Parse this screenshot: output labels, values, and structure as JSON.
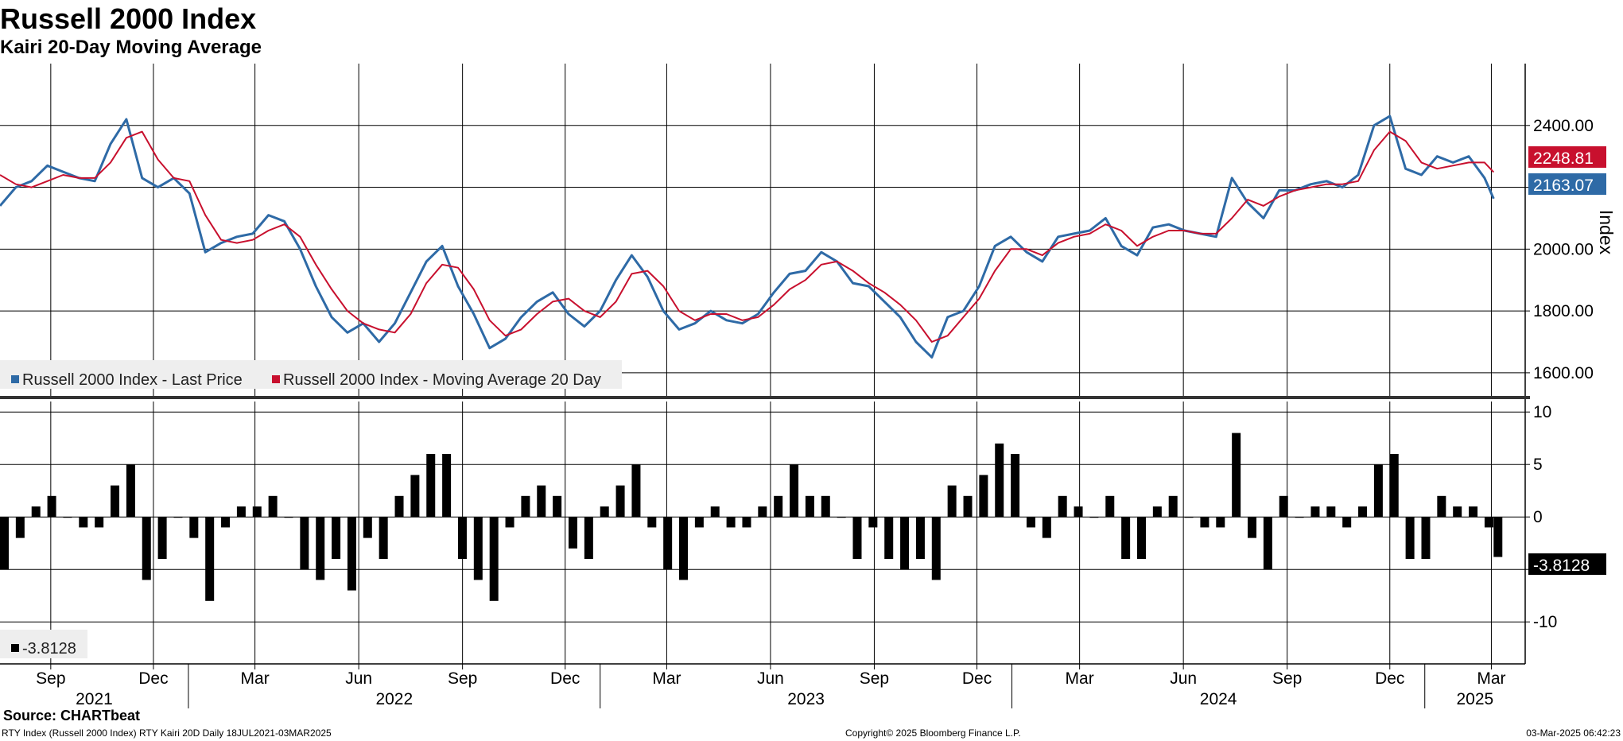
{
  "title": "Russell 2000 Index",
  "subtitle": "Kairi 20-Day Moving Average",
  "source": "Source: CHARTbeat",
  "footer": {
    "left": "RTY Index (Russell 2000 Index) RTY Kairi 20D  Daily 18JUL2021-03MAR2025",
    "center": "Copyright© 2025 Bloomberg Finance L.P.",
    "right": "03-Mar-2025 06:42:23"
  },
  "colors": {
    "price": "#2e6aa6",
    "ma": "#c8102e",
    "kairi": "#000000",
    "grid": "#000000"
  },
  "chart_data": [
    {
      "type": "line",
      "title": "Russell 2000 Index",
      "subtitle": "Kairi 20-Day Moving Average",
      "ylabel": "Index",
      "ylim": [
        1520,
        2600
      ],
      "yticks": [
        1600,
        1800,
        2000,
        2200,
        2400
      ],
      "ytick_labels": [
        "1600.00",
        "1800.00",
        "2000.00",
        "",
        "2400.00"
      ],
      "xlim": [
        "2021-07-18",
        "2025-03-31"
      ],
      "grid": true,
      "legend_position": "bottom-left",
      "last_value_labels": {
        "ma": "2248.81",
        "price": "2163.07"
      },
      "series": [
        {
          "name": "Russell 2000 Index - Last Price",
          "color": "#2e6aa6",
          "x": [
            "2021-07-18",
            "2021-08-01",
            "2021-08-15",
            "2021-08-29",
            "2021-09-12",
            "2021-09-26",
            "2021-10-10",
            "2021-10-24",
            "2021-11-07",
            "2021-11-21",
            "2021-12-05",
            "2021-12-19",
            "2022-01-02",
            "2022-01-16",
            "2022-01-30",
            "2022-02-13",
            "2022-02-27",
            "2022-03-13",
            "2022-03-27",
            "2022-04-10",
            "2022-04-24",
            "2022-05-08",
            "2022-05-22",
            "2022-06-05",
            "2022-06-19",
            "2022-07-03",
            "2022-07-17",
            "2022-07-31",
            "2022-08-14",
            "2022-08-28",
            "2022-09-11",
            "2022-09-25",
            "2022-10-09",
            "2022-10-23",
            "2022-11-06",
            "2022-11-20",
            "2022-12-04",
            "2022-12-18",
            "2023-01-01",
            "2023-01-15",
            "2023-01-29",
            "2023-02-12",
            "2023-02-26",
            "2023-03-12",
            "2023-03-26",
            "2023-04-09",
            "2023-04-23",
            "2023-05-07",
            "2023-05-21",
            "2023-06-04",
            "2023-06-18",
            "2023-07-02",
            "2023-07-16",
            "2023-07-30",
            "2023-08-13",
            "2023-08-27",
            "2023-09-10",
            "2023-09-24",
            "2023-10-08",
            "2023-10-22",
            "2023-11-05",
            "2023-11-19",
            "2023-12-03",
            "2023-12-17",
            "2023-12-31",
            "2024-01-14",
            "2024-01-28",
            "2024-02-11",
            "2024-02-25",
            "2024-03-10",
            "2024-03-24",
            "2024-04-07",
            "2024-04-21",
            "2024-05-05",
            "2024-05-19",
            "2024-06-02",
            "2024-06-16",
            "2024-06-30",
            "2024-07-14",
            "2024-07-28",
            "2024-08-11",
            "2024-08-25",
            "2024-09-08",
            "2024-09-22",
            "2024-10-06",
            "2024-10-20",
            "2024-11-03",
            "2024-11-17",
            "2024-12-01",
            "2024-12-15",
            "2024-12-29",
            "2025-01-12",
            "2025-01-26",
            "2025-02-09",
            "2025-02-23",
            "2025-03-03"
          ],
          "y": [
            2140,
            2200,
            2220,
            2270,
            2250,
            2230,
            2220,
            2340,
            2420,
            2230,
            2200,
            2230,
            2180,
            1990,
            2020,
            2040,
            2050,
            2110,
            2090,
            2000,
            1880,
            1780,
            1730,
            1760,
            1700,
            1760,
            1860,
            1960,
            2010,
            1880,
            1790,
            1680,
            1710,
            1780,
            1830,
            1860,
            1790,
            1750,
            1800,
            1900,
            1980,
            1910,
            1800,
            1740,
            1760,
            1800,
            1770,
            1760,
            1790,
            1860,
            1920,
            1930,
            1990,
            1960,
            1890,
            1880,
            1830,
            1780,
            1700,
            1650,
            1780,
            1800,
            1880,
            2010,
            2040,
            1990,
            1960,
            2040,
            2050,
            2060,
            2100,
            2010,
            1980,
            2070,
            2080,
            2060,
            2050,
            2040,
            2230,
            2150,
            2100,
            2190,
            2190,
            2210,
            2220,
            2200,
            2240,
            2400,
            2430,
            2260,
            2240,
            2300,
            2280,
            2300,
            2230,
            2163.07
          ]
        },
        {
          "name": "Russell 2000 Index - Moving Average 20 Day",
          "color": "#c8102e",
          "x": [
            "2021-07-18",
            "2021-08-01",
            "2021-08-15",
            "2021-08-29",
            "2021-09-12",
            "2021-09-26",
            "2021-10-10",
            "2021-10-24",
            "2021-11-07",
            "2021-11-21",
            "2021-12-05",
            "2021-12-19",
            "2022-01-02",
            "2022-01-16",
            "2022-01-30",
            "2022-02-13",
            "2022-02-27",
            "2022-03-13",
            "2022-03-27",
            "2022-04-10",
            "2022-04-24",
            "2022-05-08",
            "2022-05-22",
            "2022-06-05",
            "2022-06-19",
            "2022-07-03",
            "2022-07-17",
            "2022-07-31",
            "2022-08-14",
            "2022-08-28",
            "2022-09-11",
            "2022-09-25",
            "2022-10-09",
            "2022-10-23",
            "2022-11-06",
            "2022-11-20",
            "2022-12-04",
            "2022-12-18",
            "2023-01-01",
            "2023-01-15",
            "2023-01-29",
            "2023-02-12",
            "2023-02-26",
            "2023-03-12",
            "2023-03-26",
            "2023-04-09",
            "2023-04-23",
            "2023-05-07",
            "2023-05-21",
            "2023-06-04",
            "2023-06-18",
            "2023-07-02",
            "2023-07-16",
            "2023-07-30",
            "2023-08-13",
            "2023-08-27",
            "2023-09-10",
            "2023-09-24",
            "2023-10-08",
            "2023-10-22",
            "2023-11-05",
            "2023-11-19",
            "2023-12-03",
            "2023-12-17",
            "2023-12-31",
            "2024-01-14",
            "2024-01-28",
            "2024-02-11",
            "2024-02-25",
            "2024-03-10",
            "2024-03-24",
            "2024-04-07",
            "2024-04-21",
            "2024-05-05",
            "2024-05-19",
            "2024-06-02",
            "2024-06-16",
            "2024-06-30",
            "2024-07-14",
            "2024-07-28",
            "2024-08-11",
            "2024-08-25",
            "2024-09-08",
            "2024-09-22",
            "2024-10-06",
            "2024-10-20",
            "2024-11-03",
            "2024-11-17",
            "2024-12-01",
            "2024-12-15",
            "2024-12-29",
            "2025-01-12",
            "2025-01-26",
            "2025-02-09",
            "2025-02-23",
            "2025-03-03"
          ],
          "y": [
            2240,
            2210,
            2200,
            2220,
            2240,
            2230,
            2230,
            2280,
            2360,
            2380,
            2290,
            2230,
            2220,
            2110,
            2030,
            2020,
            2030,
            2060,
            2080,
            2040,
            1950,
            1870,
            1800,
            1760,
            1740,
            1730,
            1790,
            1890,
            1950,
            1940,
            1870,
            1770,
            1720,
            1740,
            1790,
            1830,
            1840,
            1800,
            1780,
            1830,
            1920,
            1930,
            1880,
            1800,
            1770,
            1790,
            1790,
            1770,
            1780,
            1820,
            1870,
            1900,
            1950,
            1960,
            1930,
            1890,
            1860,
            1820,
            1770,
            1700,
            1720,
            1780,
            1840,
            1930,
            2000,
            2000,
            1980,
            2020,
            2040,
            2050,
            2080,
            2060,
            2010,
            2040,
            2060,
            2060,
            2050,
            2050,
            2100,
            2160,
            2140,
            2170,
            2190,
            2200,
            2210,
            2210,
            2220,
            2320,
            2380,
            2350,
            2280,
            2260,
            2270,
            2280,
            2280,
            2248.81
          ]
        }
      ]
    },
    {
      "type": "bar",
      "title": "RTY Kairi 20D",
      "ylim": [
        -14,
        11
      ],
      "yticks": [
        -10,
        -5,
        0,
        5,
        10
      ],
      "ytick_labels": [
        "-10",
        "",
        "0",
        "5",
        "10"
      ],
      "xlim": [
        "2021-07-18",
        "2025-03-31"
      ],
      "grid": true,
      "legend_position": "bottom-left",
      "last_value_label": "-3.8128",
      "series": [
        {
          "name": "-3.8128",
          "color": "#000000",
          "x": [
            "2021-07-18",
            "2021-08-01",
            "2021-08-15",
            "2021-08-29",
            "2021-09-12",
            "2021-09-26",
            "2021-10-10",
            "2021-10-24",
            "2021-11-07",
            "2021-11-21",
            "2021-12-05",
            "2021-12-19",
            "2022-01-02",
            "2022-01-16",
            "2022-01-30",
            "2022-02-13",
            "2022-02-27",
            "2022-03-13",
            "2022-03-27",
            "2022-04-10",
            "2022-04-24",
            "2022-05-08",
            "2022-05-22",
            "2022-06-05",
            "2022-06-19",
            "2022-07-03",
            "2022-07-17",
            "2022-07-31",
            "2022-08-14",
            "2022-08-28",
            "2022-09-11",
            "2022-09-25",
            "2022-10-09",
            "2022-10-23",
            "2022-11-06",
            "2022-11-20",
            "2022-12-04",
            "2022-12-18",
            "2023-01-01",
            "2023-01-15",
            "2023-01-29",
            "2023-02-12",
            "2023-02-26",
            "2023-03-12",
            "2023-03-26",
            "2023-04-09",
            "2023-04-23",
            "2023-05-07",
            "2023-05-21",
            "2023-06-04",
            "2023-06-18",
            "2023-07-02",
            "2023-07-16",
            "2023-07-30",
            "2023-08-13",
            "2023-08-27",
            "2023-09-10",
            "2023-09-24",
            "2023-10-08",
            "2023-10-22",
            "2023-11-05",
            "2023-11-19",
            "2023-12-03",
            "2023-12-17",
            "2023-12-31",
            "2024-01-14",
            "2024-01-28",
            "2024-02-11",
            "2024-02-25",
            "2024-03-10",
            "2024-03-24",
            "2024-04-07",
            "2024-04-21",
            "2024-05-05",
            "2024-05-19",
            "2024-06-02",
            "2024-06-16",
            "2024-06-30",
            "2024-07-14",
            "2024-07-28",
            "2024-08-11",
            "2024-08-25",
            "2024-09-08",
            "2024-09-22",
            "2024-10-06",
            "2024-10-20",
            "2024-11-03",
            "2024-11-17",
            "2024-12-01",
            "2024-12-15",
            "2024-12-29",
            "2025-01-12",
            "2025-01-26",
            "2025-02-09",
            "2025-02-23",
            "2025-03-03"
          ],
          "y": [
            -5,
            -2,
            1,
            2,
            0,
            -1,
            -1,
            3,
            5,
            -6,
            -4,
            0,
            -2,
            -8,
            -1,
            1,
            1,
            2,
            0,
            -5,
            -6,
            -4,
            -7,
            -2,
            -4,
            2,
            4,
            6,
            6,
            -4,
            -6,
            -8,
            -1,
            2,
            3,
            2,
            -3,
            -4,
            1,
            3,
            5,
            -1,
            -5,
            -6,
            -1,
            1,
            -1,
            -1,
            1,
            2,
            5,
            2,
            2,
            0,
            -4,
            -1,
            -4,
            -5,
            -4,
            -6,
            3,
            2,
            4,
            7,
            6,
            -1,
            -2,
            2,
            1,
            0,
            2,
            -4,
            -4,
            1,
            2,
            0,
            -1,
            -1,
            8,
            -2,
            -5,
            2,
            0,
            1,
            1,
            -1,
            1,
            5,
            6,
            -4,
            -4,
            2,
            1,
            1,
            -1,
            -3.8128
          ]
        }
      ]
    }
  ],
  "axes": {
    "ylabel": "Index",
    "month_ticks": [
      "Sep",
      "Dec",
      "Mar",
      "Jun",
      "Sep",
      "Dec",
      "Mar",
      "Jun",
      "Sep",
      "Dec",
      "Mar",
      "Jun",
      "Sep",
      "Dec",
      "Mar"
    ],
    "years": [
      "2021",
      "2022",
      "2023",
      "2024",
      "2025"
    ],
    "tick_dates": [
      "2021-09-01",
      "2021-12-01",
      "2022-03-01",
      "2022-06-01",
      "2022-09-01",
      "2022-12-01",
      "2023-03-01",
      "2023-06-01",
      "2023-09-01",
      "2023-12-01",
      "2024-03-01",
      "2024-06-01",
      "2024-09-01",
      "2024-12-01",
      "2025-03-01"
    ],
    "year_boundaries": [
      "2022-01-01",
      "2023-01-01",
      "2024-01-01",
      "2025-01-01"
    ]
  },
  "legend_top": [
    "Russell 2000 Index - Last Price",
    "Russell 2000 Index - Moving Average 20 Day"
  ],
  "legend_bottom": [
    "-3.8128"
  ]
}
